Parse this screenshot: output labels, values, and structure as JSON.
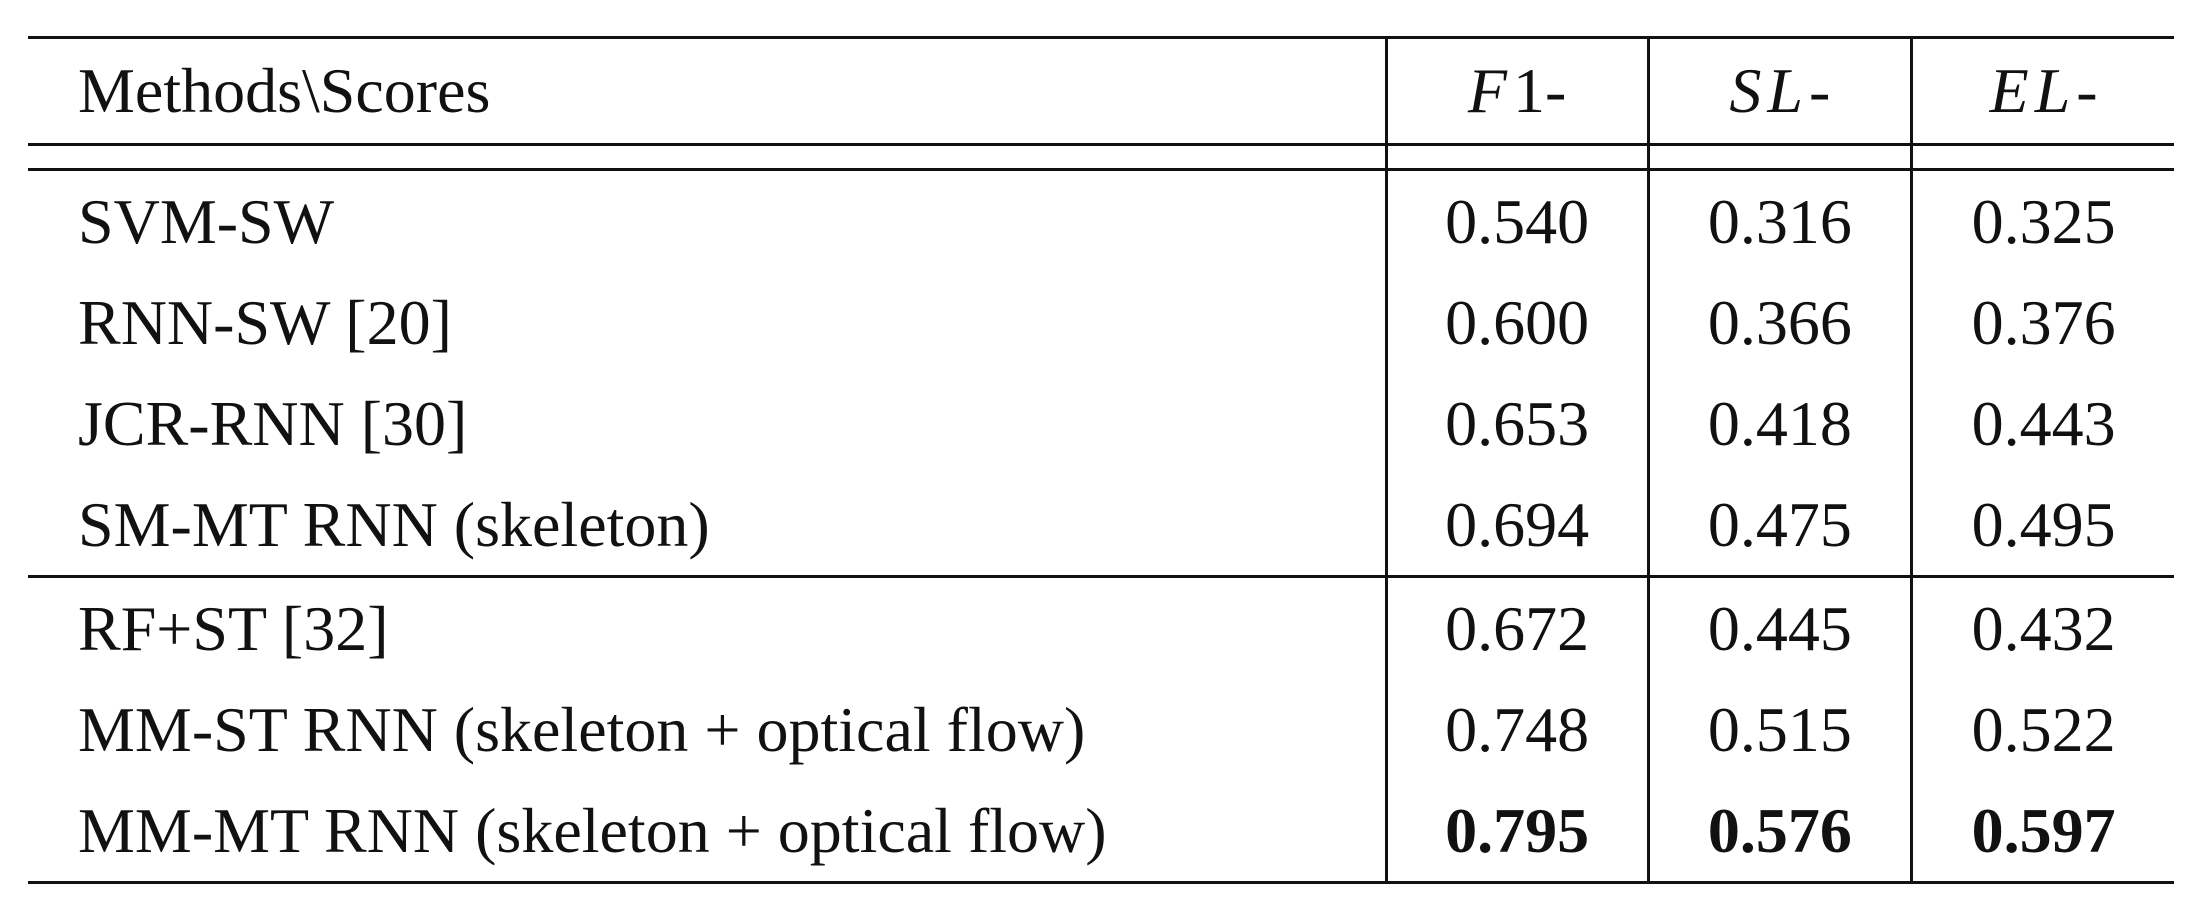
{
  "table": {
    "header": {
      "methods_label": "Methods\\Scores",
      "f1_label": "F",
      "f1_suffix": "1-",
      "sl_label": "SL",
      "sl_suffix": "-",
      "el_label": "EL",
      "el_suffix": "-"
    },
    "rows": [
      {
        "method": "SVM-SW",
        "f1": "0.540",
        "sl": "0.316",
        "el": "0.325"
      },
      {
        "method": "RNN-SW [20]",
        "f1": "0.600",
        "sl": "0.366",
        "el": "0.376"
      },
      {
        "method": "JCR-RNN [30]",
        "f1": "0.653",
        "sl": "0.418",
        "el": "0.443"
      },
      {
        "method": "SM-MT RNN (skeleton)",
        "f1": "0.694",
        "sl": "0.475",
        "el": "0.495"
      },
      {
        "method": "RF+ST [32]",
        "f1": "0.672",
        "sl": "0.445",
        "el": "0.432"
      },
      {
        "method": "MM-ST RNN (skeleton + optical flow)",
        "f1": "0.748",
        "sl": "0.515",
        "el": "0.522"
      },
      {
        "method": "MM-MT RNN (skeleton + optical flow)",
        "f1": "0.795",
        "sl": "0.576",
        "el": "0.597"
      }
    ]
  }
}
